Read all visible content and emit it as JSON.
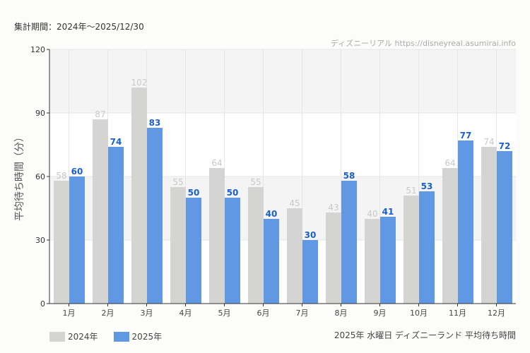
{
  "header": {
    "period": "集計期間：2024年～2025/12/30",
    "credit": "ディズニーリアル https://disneyreal.asumirai.info"
  },
  "caption": "2025年 水曜日 ディズニーランド 平均待ち時間",
  "chart_data": {
    "type": "bar",
    "title": "",
    "ylabel": "平均待ち時間（分）",
    "xlabel": "",
    "ylim": [
      0,
      120
    ],
    "yticks": [
      0,
      30,
      60,
      90,
      120
    ],
    "grid": true,
    "legend": "bottom-left",
    "categories": [
      "1月",
      "2月",
      "3月",
      "4月",
      "5月",
      "6月",
      "7月",
      "8月",
      "9月",
      "10月",
      "11月",
      "12月"
    ],
    "series": [
      {
        "name": "2024年",
        "color": "#d4d4d2",
        "label_color": "#c8c8c8",
        "values": [
          58,
          87,
          102,
          55,
          64,
          55,
          45,
          43,
          40,
          51,
          64,
          74
        ]
      },
      {
        "name": "2025年",
        "color": "#6198e3",
        "label_color": "#1a5fcf",
        "values": [
          60,
          74,
          83,
          50,
          50,
          40,
          30,
          58,
          41,
          53,
          77,
          72
        ]
      }
    ]
  }
}
